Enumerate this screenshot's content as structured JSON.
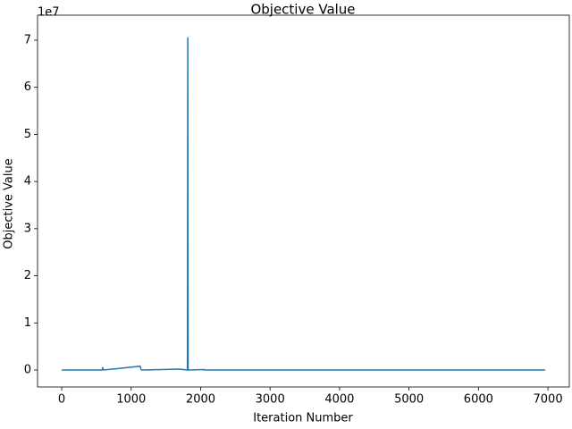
{
  "chart_data": {
    "type": "line",
    "title": "Objective Value",
    "x_label": "Iteration Number",
    "y_label": "Objective Value",
    "y_offset_label": "1e7",
    "x": [
      0,
      580,
      590,
      600,
      1130,
      1140,
      1150,
      1700,
      1810,
      1815,
      1820,
      2060,
      2070,
      6960
    ],
    "series": [
      {
        "name": "objective",
        "color": "#1f77b4",
        "values": [
          10000,
          10000,
          500000,
          10000,
          800000,
          200000,
          10000,
          200000,
          10000,
          70500000,
          10000,
          100000,
          10000,
          10000
        ]
      }
    ],
    "xlim": [
      -348,
      7308
    ],
    "xticks": [
      0,
      1000,
      2000,
      3000,
      4000,
      5000,
      6000,
      7000
    ],
    "ylim": [
      -3600000,
      75300000
    ],
    "yticks": [
      {
        "value": 0,
        "label": "0"
      },
      {
        "value": 10000000,
        "label": "1"
      },
      {
        "value": 20000000,
        "label": "2"
      },
      {
        "value": 30000000,
        "label": "3"
      },
      {
        "value": 40000000,
        "label": "4"
      },
      {
        "value": 50000000,
        "label": "5"
      },
      {
        "value": 60000000,
        "label": "6"
      },
      {
        "value": 70000000,
        "label": "7"
      }
    ],
    "grid": false
  }
}
